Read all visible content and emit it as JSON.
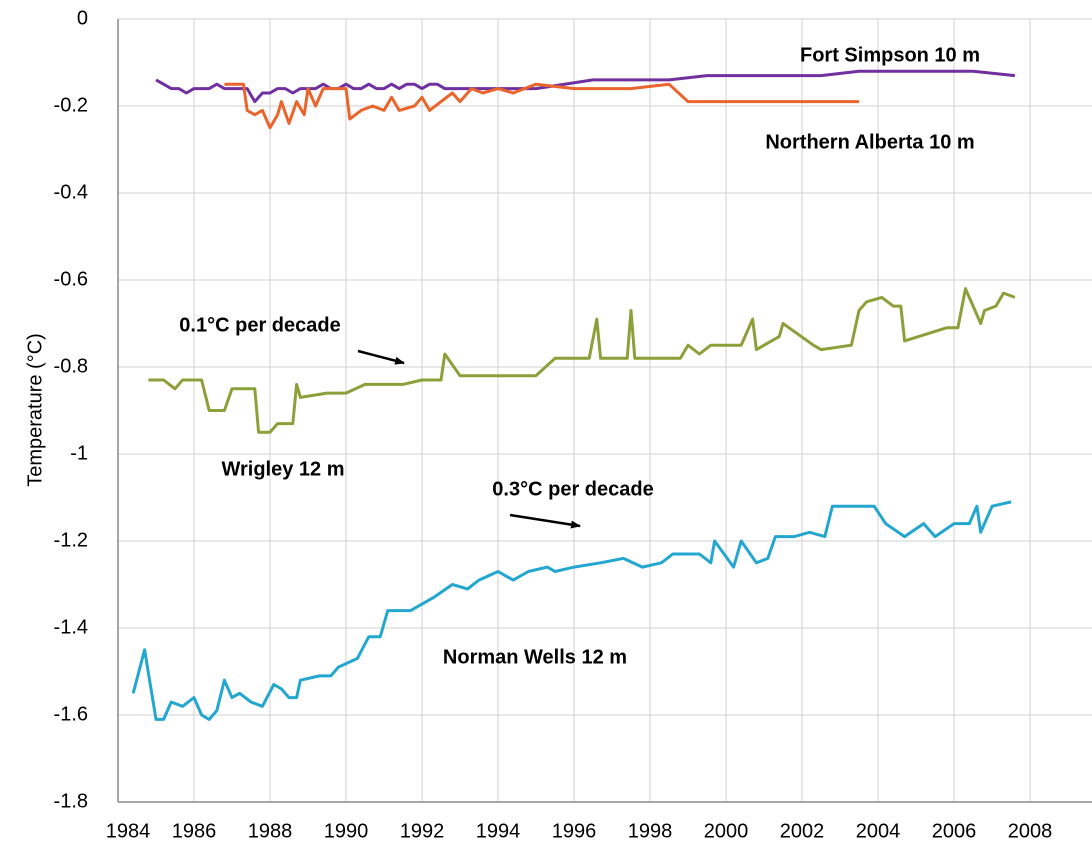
{
  "chart_data": {
    "type": "line",
    "y_label": "Temperature (°C)",
    "xlim": [
      1984,
      2009.63
    ],
    "xticks": [
      1984,
      1986,
      1988,
      1990,
      1992,
      1994,
      1996,
      1998,
      2000,
      2002,
      2004,
      2006,
      2008
    ],
    "ylim": [
      -1.8,
      0
    ],
    "yticks": [
      0,
      -0.2,
      -0.4,
      -0.6,
      -0.8,
      -1,
      -1.2,
      -1.4,
      -1.6,
      -1.8
    ],
    "grid": true,
    "annotations": [
      "Fort Simpson 10 m",
      "Northern Alberta 10 m",
      "0.1°C per decade",
      "Wrigley 12 m",
      "0.3°C per decade",
      "Norman Wells 12 m"
    ],
    "series": [
      {
        "name": "Fort Simpson 10 m",
        "color": "#7030a0",
        "x": [
          1985,
          1985.2,
          1985.4,
          1985.6,
          1985.8,
          1986,
          1986.2,
          1986.4,
          1986.6,
          1986.8,
          1987,
          1987.2,
          1987.4,
          1987.6,
          1987.8,
          1988,
          1988.2,
          1988.4,
          1988.6,
          1988.8,
          1989,
          1989.2,
          1989.4,
          1989.6,
          1989.8,
          1990,
          1990.2,
          1990.4,
          1990.6,
          1990.8,
          1991,
          1991.2,
          1991.4,
          1991.6,
          1991.8,
          1992,
          1992.2,
          1992.4,
          1992.6,
          1992.8,
          1993,
          1994,
          1995,
          1996.5,
          1998.5,
          1999.5,
          2002.5,
          2003.5,
          2006.5,
          2007.6
        ],
        "values": [
          -0.14,
          -0.15,
          -0.16,
          -0.16,
          -0.17,
          -0.16,
          -0.16,
          -0.16,
          -0.15,
          -0.16,
          -0.16,
          -0.16,
          -0.16,
          -0.19,
          -0.17,
          -0.17,
          -0.16,
          -0.16,
          -0.17,
          -0.16,
          -0.16,
          -0.16,
          -0.15,
          -0.16,
          -0.16,
          -0.15,
          -0.16,
          -0.16,
          -0.15,
          -0.16,
          -0.16,
          -0.15,
          -0.16,
          -0.15,
          -0.15,
          -0.16,
          -0.15,
          -0.15,
          -0.16,
          -0.16,
          -0.16,
          -0.16,
          -0.16,
          -0.14,
          -0.14,
          -0.13,
          -0.13,
          -0.12,
          -0.12,
          -0.13
        ]
      },
      {
        "name": "Northern Alberta 10 m",
        "color": "#e9652c",
        "x": [
          1986.8,
          1987.3,
          1987.4,
          1987.6,
          1987.8,
          1988,
          1988.2,
          1988.3,
          1988.5,
          1988.7,
          1988.9,
          1989,
          1989.2,
          1989.4,
          1989.6,
          1990,
          1990.1,
          1990.4,
          1990.7,
          1991,
          1991.2,
          1991.4,
          1991.8,
          1992,
          1992.2,
          1992.5,
          1992.8,
          1993,
          1993.3,
          1993.6,
          1994,
          1994.4,
          1995,
          1996,
          1997.5,
          1998.5,
          1999,
          2003.5
        ],
        "values": [
          -0.15,
          -0.15,
          -0.21,
          -0.22,
          -0.21,
          -0.25,
          -0.22,
          -0.19,
          -0.24,
          -0.19,
          -0.22,
          -0.16,
          -0.2,
          -0.16,
          -0.16,
          -0.16,
          -0.23,
          -0.21,
          -0.2,
          -0.21,
          -0.18,
          -0.21,
          -0.2,
          -0.18,
          -0.21,
          -0.19,
          -0.17,
          -0.19,
          -0.16,
          -0.17,
          -0.16,
          -0.17,
          -0.15,
          -0.16,
          -0.16,
          -0.15,
          -0.19,
          -0.19
        ]
      },
      {
        "name": "Wrigley 12 m",
        "color": "#8ca03a",
        "x": [
          1984.8,
          1985.2,
          1985.5,
          1985.7,
          1986.2,
          1986.4,
          1986.8,
          1987,
          1987.6,
          1987.7,
          1988,
          1988.2,
          1988.6,
          1988.7,
          1988.8,
          1989.5,
          1990,
          1990.5,
          1991.5,
          1992,
          1992.5,
          1992.6,
          1993,
          1994,
          1995,
          1995.5,
          1996.4,
          1996.6,
          1996.7,
          1997.4,
          1997.5,
          1997.6,
          1998.8,
          1999,
          1999.3,
          1999.6,
          2000.4,
          2000.7,
          2000.8,
          2001.4,
          2001.5,
          2002.3,
          2002.5,
          2003.3,
          2003.5,
          2003.7,
          2004.1,
          2004.4,
          2004.6,
          2004.7,
          2005.8,
          2006.1,
          2006.3,
          2006.5,
          2006.7,
          2006.8,
          2007.1,
          2007.3,
          2007.6
        ],
        "values": [
          -0.83,
          -0.83,
          -0.85,
          -0.83,
          -0.83,
          -0.9,
          -0.9,
          -0.85,
          -0.85,
          -0.95,
          -0.95,
          -0.93,
          -0.93,
          -0.84,
          -0.87,
          -0.86,
          -0.86,
          -0.84,
          -0.84,
          -0.83,
          -0.83,
          -0.77,
          -0.82,
          -0.82,
          -0.82,
          -0.78,
          -0.78,
          -0.69,
          -0.78,
          -0.78,
          -0.67,
          -0.78,
          -0.78,
          -0.75,
          -0.77,
          -0.75,
          -0.75,
          -0.69,
          -0.76,
          -0.73,
          -0.7,
          -0.75,
          -0.76,
          -0.75,
          -0.67,
          -0.65,
          -0.64,
          -0.66,
          -0.66,
          -0.74,
          -0.71,
          -0.71,
          -0.62,
          -0.66,
          -0.7,
          -0.67,
          -0.66,
          -0.63,
          -0.64
        ]
      },
      {
        "name": "Norman Wells 12 m",
        "color": "#23a7d1",
        "x": [
          1984.4,
          1984.7,
          1985,
          1985.2,
          1985.4,
          1985.7,
          1986,
          1986.2,
          1986.4,
          1986.6,
          1986.8,
          1987,
          1987.2,
          1987.5,
          1987.8,
          1988.1,
          1988.3,
          1988.5,
          1988.7,
          1988.8,
          1989.3,
          1989.6,
          1989.8,
          1990.3,
          1990.6,
          1990.9,
          1991.1,
          1991.7,
          1992.3,
          1992.8,
          1993.2,
          1993.5,
          1994,
          1994.4,
          1994.8,
          1995.3,
          1995.5,
          1996,
          1996.7,
          1997.3,
          1997.8,
          1998.3,
          1998.6,
          1999.3,
          1999.6,
          1999.7,
          2000.2,
          2000.4,
          2000.8,
          2001.1,
          2001.3,
          2001.8,
          2002.2,
          2002.6,
          2002.8,
          2003.9,
          2004.2,
          2004.7,
          2005.2,
          2005.5,
          2006,
          2006.4,
          2006.6,
          2006.7,
          2007,
          2007.5
        ],
        "values": [
          -1.55,
          -1.45,
          -1.61,
          -1.61,
          -1.57,
          -1.58,
          -1.56,
          -1.6,
          -1.61,
          -1.59,
          -1.52,
          -1.56,
          -1.55,
          -1.57,
          -1.58,
          -1.53,
          -1.54,
          -1.56,
          -1.56,
          -1.52,
          -1.51,
          -1.51,
          -1.49,
          -1.47,
          -1.42,
          -1.42,
          -1.36,
          -1.36,
          -1.33,
          -1.3,
          -1.31,
          -1.29,
          -1.27,
          -1.29,
          -1.27,
          -1.26,
          -1.27,
          -1.26,
          -1.25,
          -1.24,
          -1.26,
          -1.25,
          -1.23,
          -1.23,
          -1.25,
          -1.2,
          -1.26,
          -1.2,
          -1.25,
          -1.24,
          -1.19,
          -1.19,
          -1.18,
          -1.19,
          -1.12,
          -1.12,
          -1.16,
          -1.19,
          -1.16,
          -1.19,
          -1.16,
          -1.16,
          -1.12,
          -1.18,
          -1.12,
          -1.11
        ]
      }
    ]
  }
}
